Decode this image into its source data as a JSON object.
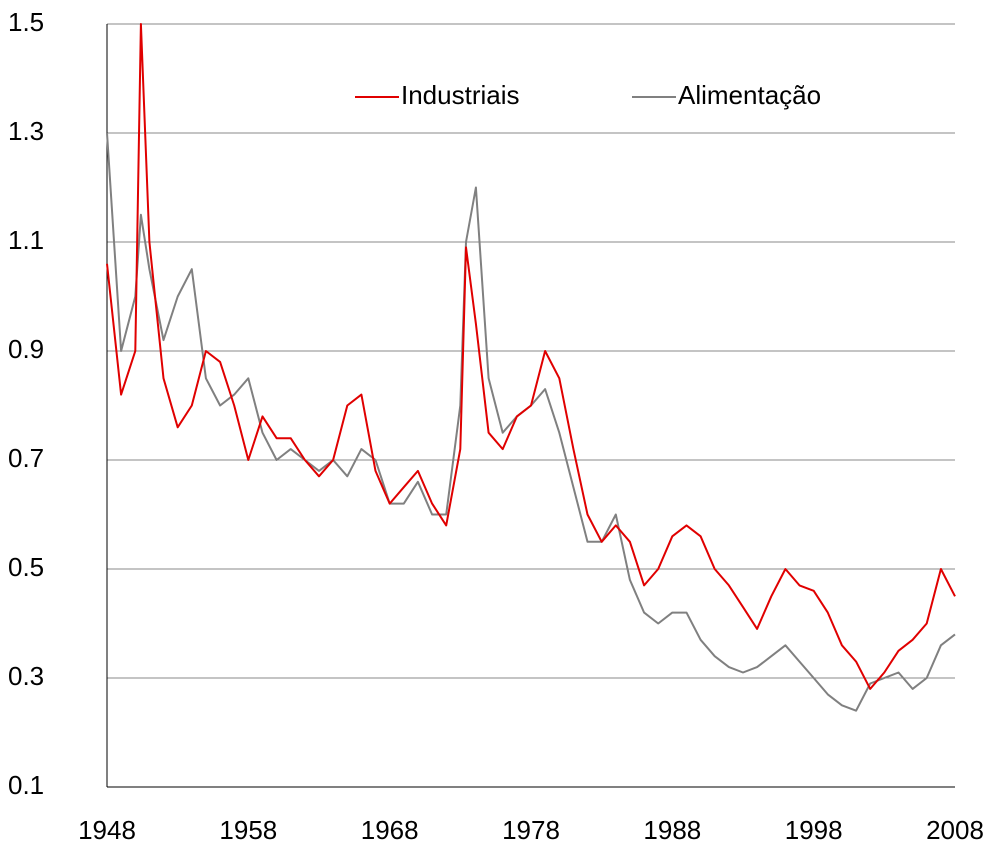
{
  "chart_data": {
    "type": "line",
    "x": [
      1948,
      1949,
      1950,
      1950.4,
      1951,
      1952,
      1953,
      1954,
      1955,
      1956,
      1957,
      1958,
      1959,
      1960,
      1961,
      1962,
      1963,
      1964,
      1965,
      1966,
      1967,
      1968,
      1969,
      1970,
      1971,
      1972,
      1973,
      1973.4,
      1974.1,
      1975,
      1976,
      1977,
      1978,
      1979,
      1980,
      1981,
      1982,
      1983,
      1984,
      1985,
      1986,
      1987,
      1988,
      1989,
      1990,
      1991,
      1992,
      1993,
      1994,
      1995,
      1996,
      1997,
      1998,
      1999,
      2000,
      2001,
      2002,
      2003,
      2004,
      2005,
      2006,
      2007,
      2008
    ],
    "series": [
      {
        "name": "Industriais",
        "color": "#e00000",
        "values": [
          1.06,
          0.82,
          0.9,
          1.5,
          1.1,
          0.85,
          0.76,
          0.8,
          0.9,
          0.88,
          0.8,
          0.7,
          0.78,
          0.74,
          0.74,
          0.7,
          0.67,
          0.7,
          0.8,
          0.82,
          0.68,
          0.62,
          0.65,
          0.68,
          0.62,
          0.58,
          0.72,
          1.09,
          0.95,
          0.75,
          0.72,
          0.78,
          0.8,
          0.9,
          0.85,
          0.72,
          0.6,
          0.55,
          0.58,
          0.55,
          0.47,
          0.5,
          0.56,
          0.58,
          0.56,
          0.5,
          0.47,
          0.43,
          0.39,
          0.45,
          0.5,
          0.47,
          0.46,
          0.42,
          0.36,
          0.33,
          0.28,
          0.31,
          0.35,
          0.37,
          0.4,
          0.5,
          0.45
        ]
      },
      {
        "name": "Alimentação",
        "color": "#808080",
        "values": [
          1.3,
          0.9,
          1.0,
          1.15,
          1.05,
          0.92,
          1.0,
          1.05,
          0.85,
          0.8,
          0.82,
          0.85,
          0.75,
          0.7,
          0.72,
          0.7,
          0.68,
          0.7,
          0.67,
          0.72,
          0.7,
          0.62,
          0.62,
          0.66,
          0.6,
          0.6,
          0.8,
          1.1,
          1.2,
          0.85,
          0.75,
          0.78,
          0.8,
          0.83,
          0.75,
          0.65,
          0.55,
          0.55,
          0.6,
          0.48,
          0.42,
          0.4,
          0.42,
          0.42,
          0.37,
          0.34,
          0.32,
          0.31,
          0.32,
          0.34,
          0.36,
          0.33,
          0.3,
          0.27,
          0.25,
          0.24,
          0.29,
          0.3,
          0.31,
          0.28,
          0.3,
          0.36,
          0.38
        ]
      }
    ],
    "xlim": [
      1948,
      2008
    ],
    "xticks": [
      1948,
      1958,
      1968,
      1978,
      1988,
      1998,
      2008
    ],
    "ylim": [
      0.1,
      1.5
    ],
    "yticks": [
      0.1,
      0.3,
      0.5,
      0.7,
      0.9,
      1.1,
      1.3,
      1.5
    ],
    "grid": true,
    "legend": "top"
  }
}
